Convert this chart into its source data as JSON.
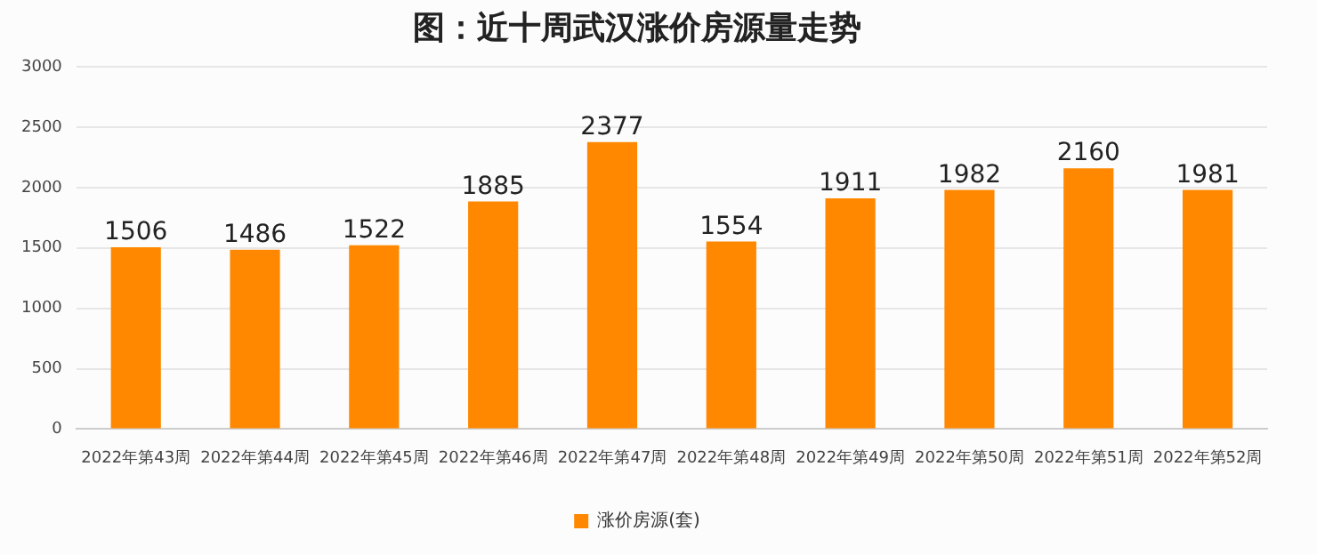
{
  "chart_data": {
    "type": "bar",
    "title": "图：近十周武汉涨价房源量走势",
    "categories": [
      "2022年第43周",
      "2022年第44周",
      "2022年第45周",
      "2022年第46周",
      "2022年第47周",
      "2022年第48周",
      "2022年第49周",
      "2022年第50周",
      "2022年第51周",
      "2022年第52周"
    ],
    "series": [
      {
        "name": "涨价房源(套)",
        "color": "#ff8800",
        "values": [
          1506,
          1486,
          1522,
          1885,
          2377,
          1554,
          1911,
          1982,
          2160,
          1981
        ]
      }
    ],
    "ylim": [
      0,
      3000
    ],
    "yticks": [
      0,
      500,
      1000,
      1500,
      2000,
      2500,
      3000
    ],
    "grid": "y",
    "legend": "bottom",
    "data_labels": true
  }
}
